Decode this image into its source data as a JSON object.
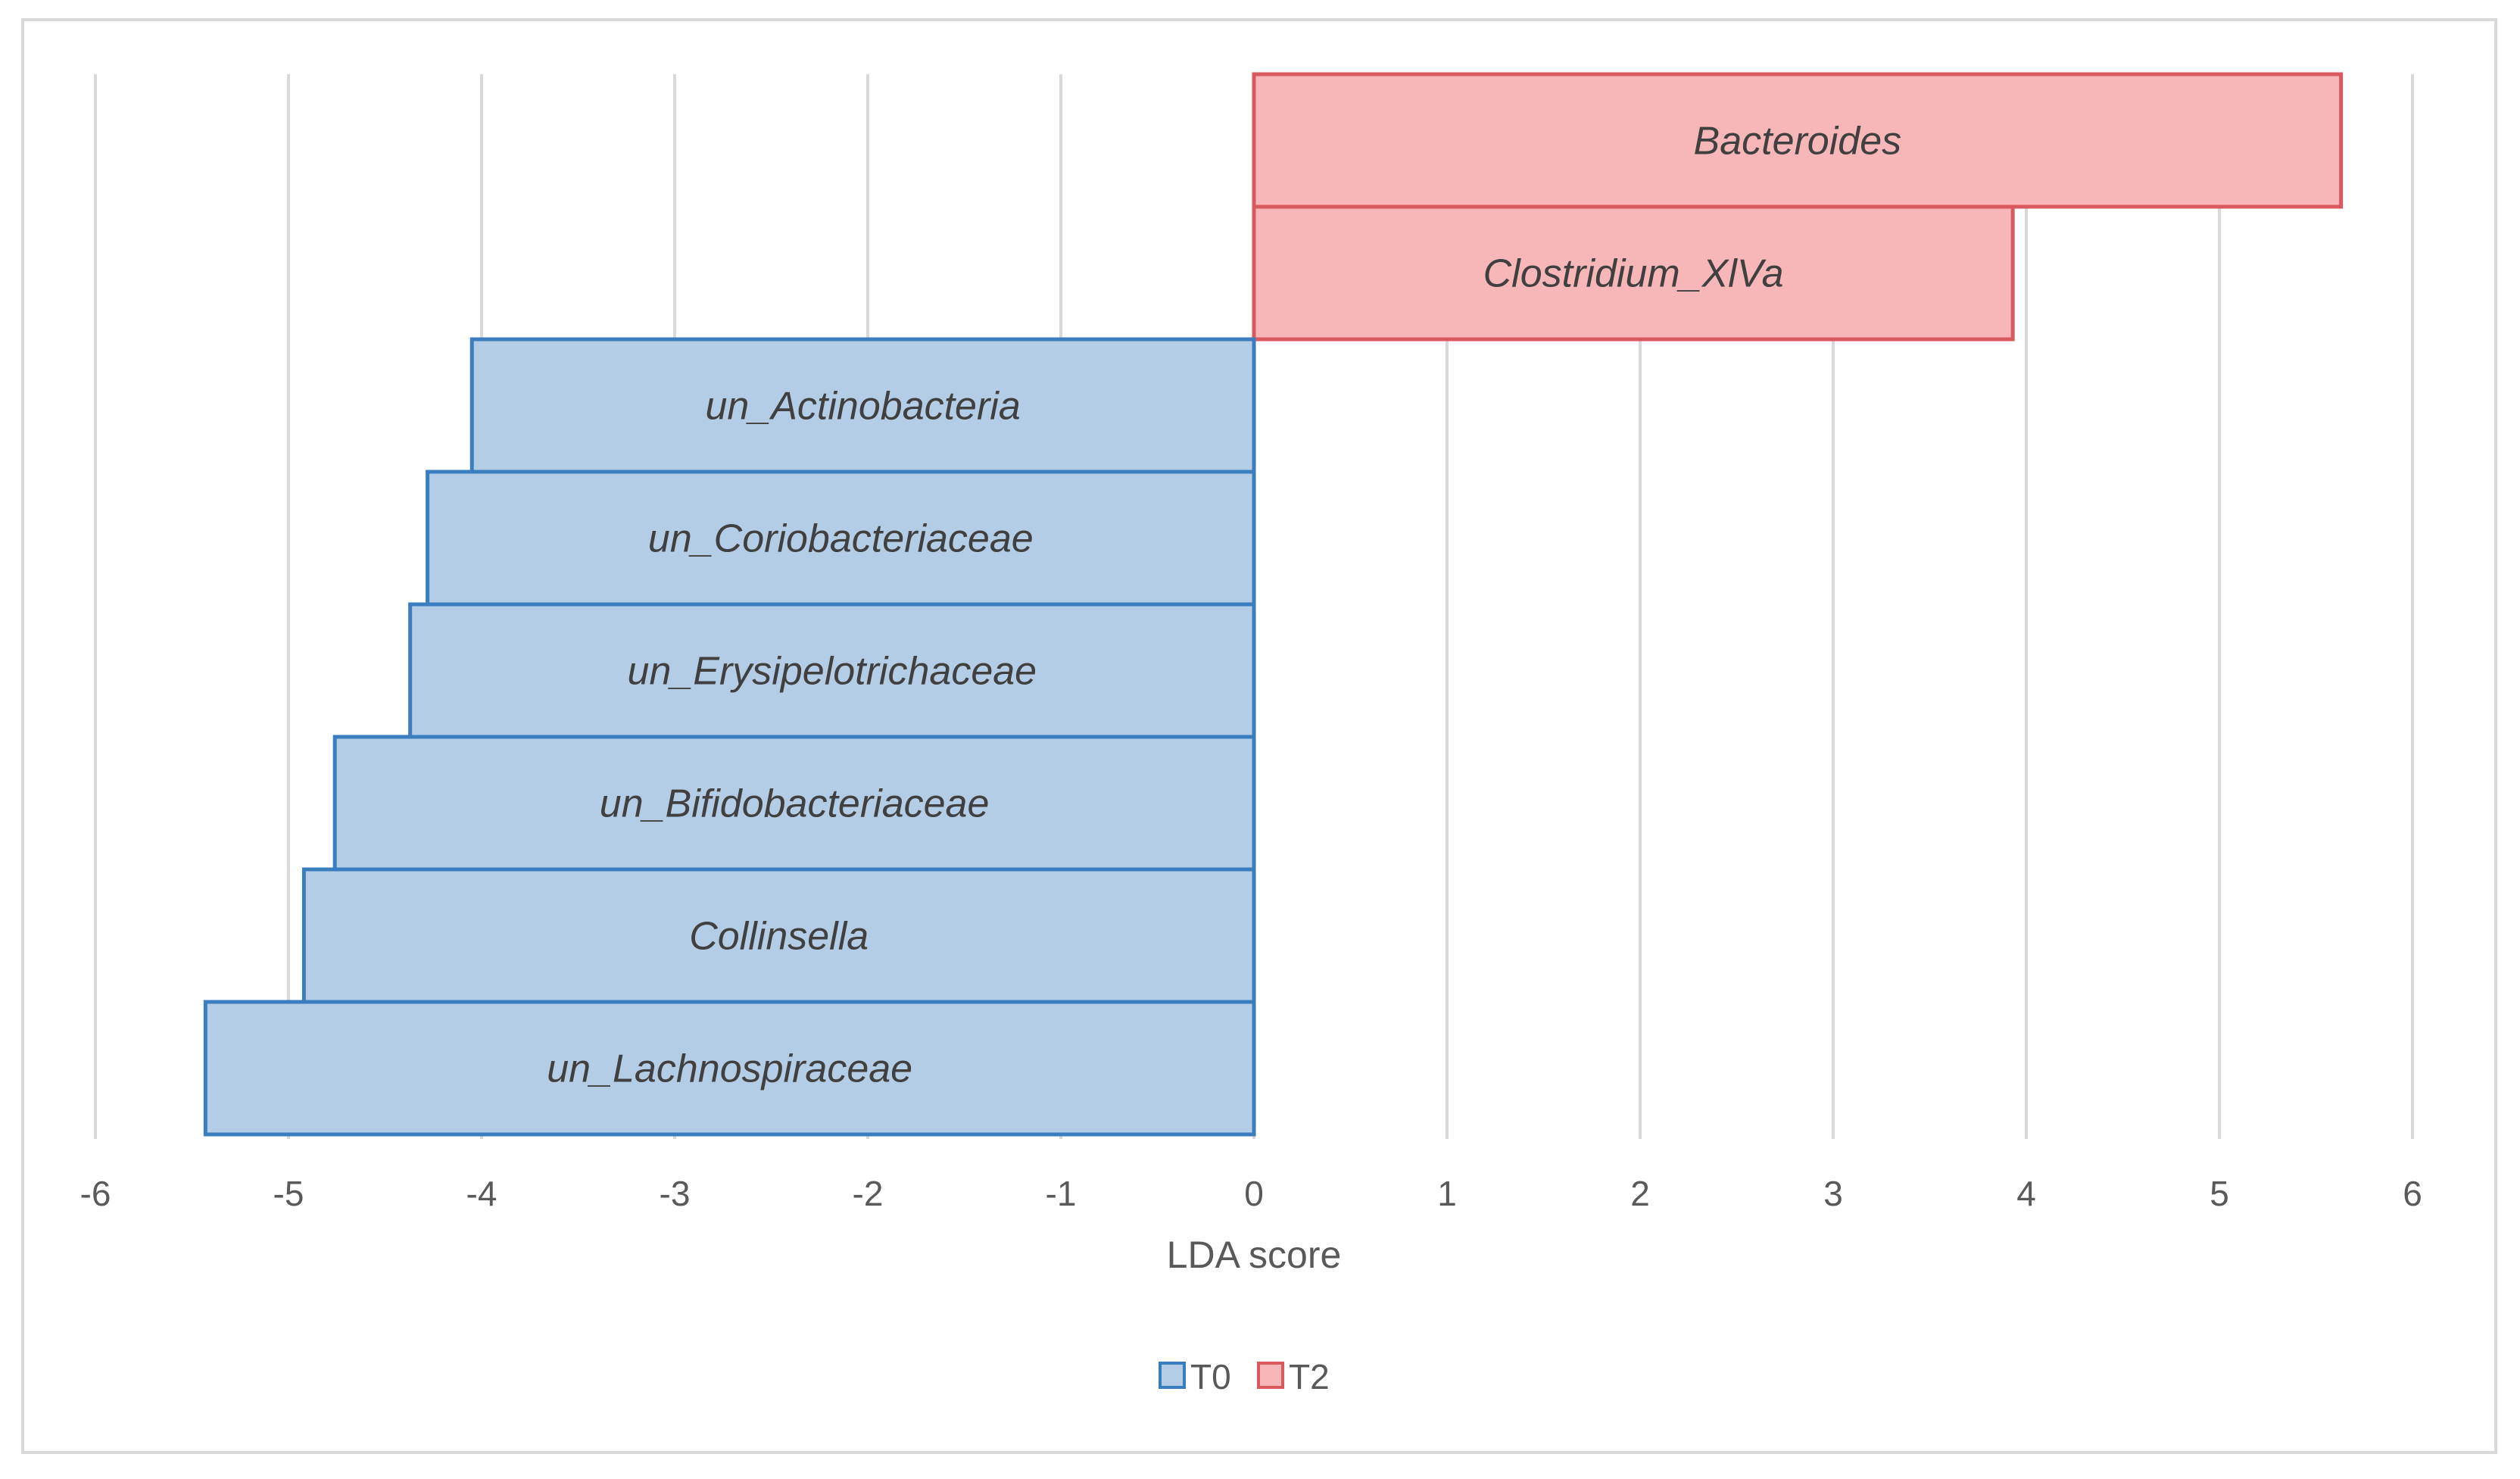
{
  "chart_data": {
    "type": "bar",
    "orientation": "horizontal",
    "title": "",
    "xlabel": "LDA score",
    "ylabel": "",
    "xlim": [
      -6,
      6
    ],
    "xticks": [
      -6,
      -5,
      -4,
      -3,
      -2,
      -1,
      0,
      1,
      2,
      3,
      4,
      5,
      6
    ],
    "grid": "vertical",
    "legend_position": "bottom",
    "categories": [
      "Bacteroides",
      "Clostridium_XlVa",
      "un_Actinobacteria",
      "un_Coriobacteriaceae",
      "un_Erysipelotrichaceae",
      "un_Bifidobacteriaceae",
      "Collinsella",
      "un_Lachnospiraceae"
    ],
    "values": [
      5.63,
      3.93,
      -4.05,
      -4.28,
      -4.37,
      -4.76,
      -4.92,
      -5.43
    ],
    "groups": [
      "T2",
      "T2",
      "T0",
      "T0",
      "T0",
      "T0",
      "T0",
      "T0"
    ],
    "series": [
      {
        "name": "T0",
        "fill": "#b4cde6",
        "stroke": "#3b7ebf"
      },
      {
        "name": "T2",
        "fill": "#f7b6b8",
        "stroke": "#d9595e"
      }
    ]
  }
}
